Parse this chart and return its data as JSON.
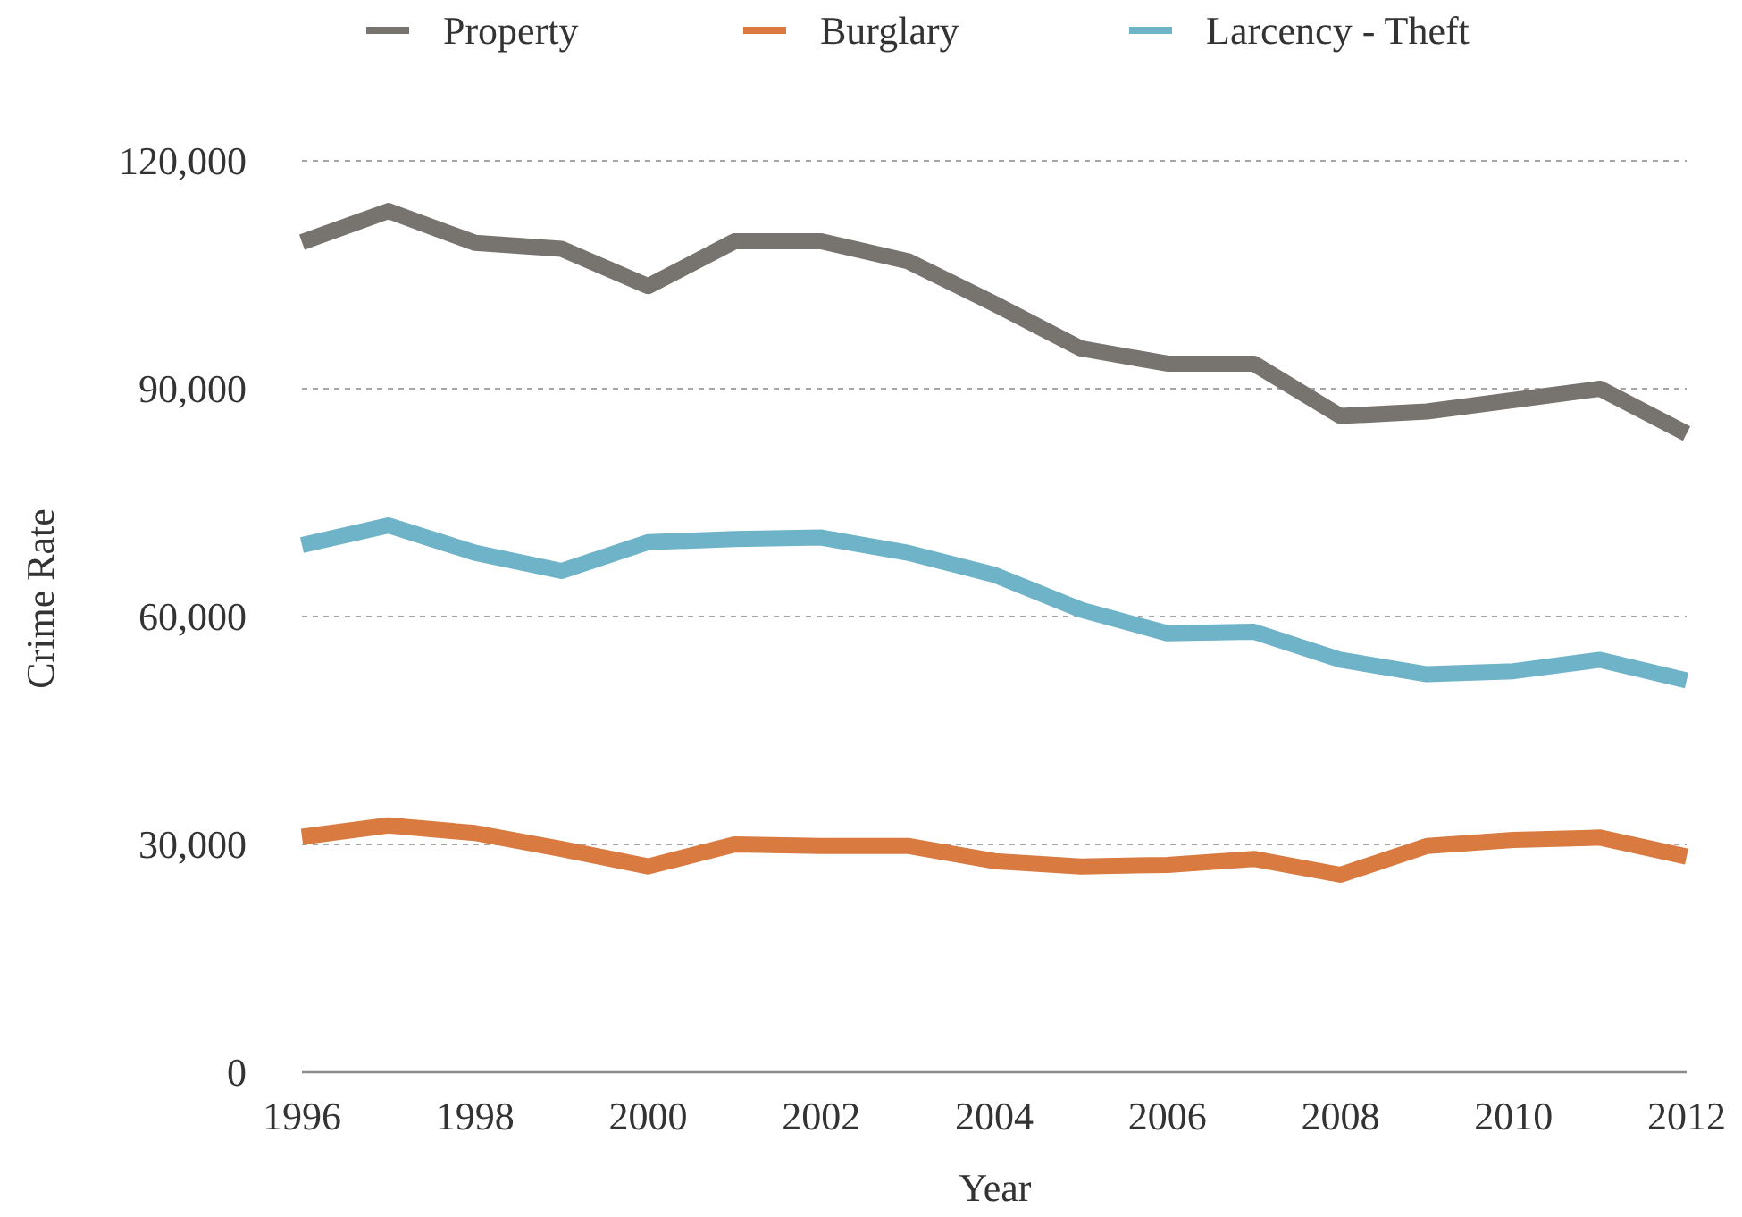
{
  "chart_data": {
    "type": "line",
    "xlabel": "Year",
    "ylabel": "Crime Rate",
    "x": [
      1996,
      1997,
      1998,
      1999,
      2000,
      2001,
      2002,
      2003,
      2004,
      2005,
      2006,
      2007,
      2008,
      2009,
      2010,
      2011,
      2012
    ],
    "series": [
      {
        "name": "Property",
        "color": "#77736e",
        "values": [
          109300,
          113400,
          109200,
          108400,
          103500,
          109400,
          109400,
          106800,
          101200,
          95300,
          93300,
          93300,
          86400,
          87000,
          88500,
          90000,
          84100
        ]
      },
      {
        "name": "Burglary",
        "color": "#d97a40",
        "values": [
          31000,
          32500,
          31500,
          29400,
          27100,
          30000,
          29800,
          29800,
          27800,
          27100,
          27300,
          28100,
          26000,
          29800,
          30600,
          30900,
          28400
        ]
      },
      {
        "name": "Larcency - Theft",
        "color": "#6fb3c8",
        "values": [
          69400,
          72000,
          68400,
          66000,
          69800,
          70200,
          70400,
          68400,
          65500,
          60900,
          57800,
          58000,
          54300,
          52400,
          52800,
          54300,
          51600
        ]
      }
    ],
    "xlim": [
      1996,
      2012
    ],
    "xticks": [
      1996,
      1998,
      2000,
      2002,
      2004,
      2006,
      2008,
      2010,
      2012
    ],
    "ylim": [
      0,
      120000
    ],
    "yticks": [
      {
        "value": 0,
        "label": "0"
      },
      {
        "value": 30000,
        "label": "30,000"
      },
      {
        "value": 60000,
        "label": "60,000"
      },
      {
        "value": 90000,
        "label": "90,000"
      },
      {
        "value": 120000,
        "label": "120,000"
      }
    ],
    "grid": "y",
    "legend": "top",
    "marker": "none",
    "line_style": "solid"
  }
}
